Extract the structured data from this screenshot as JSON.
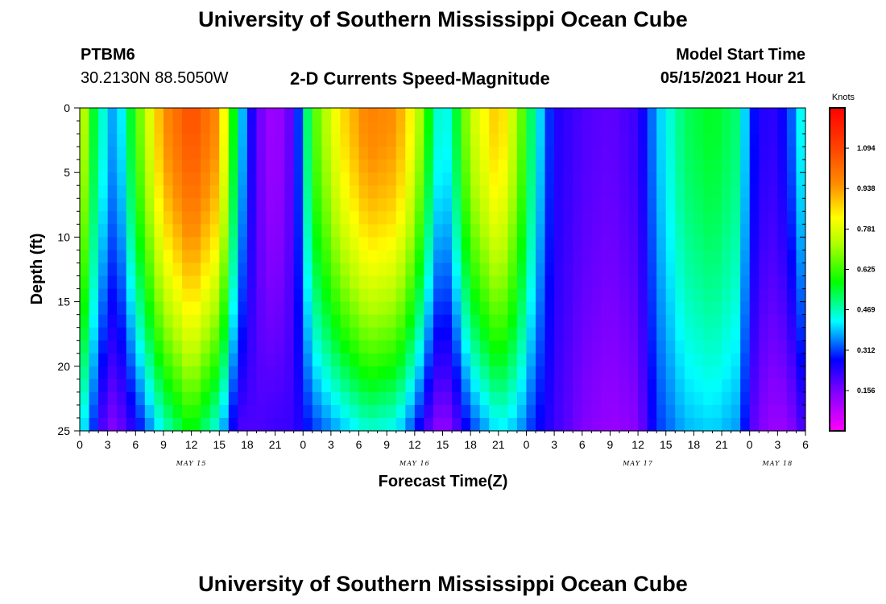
{
  "header": {
    "title": "University of Southern Mississippi Ocean Cube",
    "station": "PTBM6",
    "coords": "30.2130N  88.5050W",
    "subtitle": "2-D Currents Speed-Magnitude",
    "model_label": "Model Start Time",
    "model_time": "05/15/2021 Hour 21"
  },
  "footer": {
    "title": "University of Southern Mississippi Ocean Cube"
  },
  "chart_data": {
    "type": "heatmap",
    "title": "2-D Currents Speed-Magnitude",
    "xlabel": "Forecast Time(Z)",
    "ylabel": "Depth (ft)",
    "x_ticks": [
      "0",
      "3",
      "6",
      "9",
      "12",
      "15",
      "18",
      "21",
      "0",
      "3",
      "6",
      "9",
      "12",
      "15",
      "18",
      "21",
      "0",
      "3",
      "6",
      "9",
      "12",
      "15",
      "18",
      "21",
      "0",
      "3",
      "6"
    ],
    "x_day_labels": [
      {
        "label": "MAY 15",
        "hour": 12
      },
      {
        "label": "MAY 16",
        "hour": 36
      },
      {
        "label": "MAY 17",
        "hour": 60
      },
      {
        "label": "MAY 18",
        "hour": 75
      }
    ],
    "x_range_hours": [
      0,
      78
    ],
    "y_ticks": [
      0,
      5,
      10,
      15,
      20,
      25
    ],
    "ylim": [
      0,
      25
    ],
    "y_inverted": true,
    "colorbar": {
      "unit": "Knots",
      "range": [
        0,
        1.25
      ],
      "ticks": [
        "1.094",
        "0.938",
        "0.781",
        "0.625",
        "0.469",
        "0.312",
        "0.156"
      ],
      "tick_values": [
        1.094,
        0.938,
        0.781,
        0.625,
        0.469,
        0.312,
        0.156
      ],
      "colormap": "rainbow magenta-blue-cyan-green-yellow-orange-red"
    },
    "speed_profiles": [
      {
        "hour": 0,
        "top": 0.85,
        "bottom": 0.45
      },
      {
        "hour": 1,
        "top": 0.6,
        "bottom": 0.35
      },
      {
        "hour": 3,
        "top": 0.4,
        "bottom": 0.14
      },
      {
        "hour": 4,
        "top": 0.35,
        "bottom": 0.15
      },
      {
        "hour": 6,
        "top": 0.62,
        "bottom": 0.25
      },
      {
        "hour": 9,
        "top": 0.95,
        "bottom": 0.45
      },
      {
        "hour": 12,
        "top": 1.08,
        "bottom": 0.58
      },
      {
        "hour": 15,
        "top": 0.95,
        "bottom": 0.42
      },
      {
        "hour": 17,
        "top": 0.45,
        "bottom": 0.2
      },
      {
        "hour": 19,
        "top": 0.18,
        "bottom": 0.2
      },
      {
        "hour": 21,
        "top": 0.1,
        "bottom": 0.22
      },
      {
        "hour": 23,
        "top": 0.2,
        "bottom": 0.22
      },
      {
        "hour": 25,
        "top": 0.62,
        "bottom": 0.3
      },
      {
        "hour": 28,
        "top": 0.85,
        "bottom": 0.38
      },
      {
        "hour": 31,
        "top": 0.98,
        "bottom": 0.45
      },
      {
        "hour": 34,
        "top": 0.95,
        "bottom": 0.42
      },
      {
        "hour": 36,
        "top": 0.8,
        "bottom": 0.3
      },
      {
        "hour": 38,
        "top": 0.5,
        "bottom": 0.15
      },
      {
        "hour": 39,
        "top": 0.4,
        "bottom": 0.12
      },
      {
        "hour": 40,
        "top": 0.48,
        "bottom": 0.15
      },
      {
        "hour": 42,
        "top": 0.75,
        "bottom": 0.3
      },
      {
        "hour": 45,
        "top": 0.9,
        "bottom": 0.42
      },
      {
        "hour": 47,
        "top": 0.72,
        "bottom": 0.38
      },
      {
        "hour": 49,
        "top": 0.45,
        "bottom": 0.28
      },
      {
        "hour": 51,
        "top": 0.25,
        "bottom": 0.22
      },
      {
        "hour": 54,
        "top": 0.2,
        "bottom": 0.15
      },
      {
        "hour": 57,
        "top": 0.18,
        "bottom": 0.12
      },
      {
        "hour": 60,
        "top": 0.22,
        "bottom": 0.14
      },
      {
        "hour": 62,
        "top": 0.38,
        "bottom": 0.3
      },
      {
        "hour": 65,
        "top": 0.52,
        "bottom": 0.38
      },
      {
        "hour": 68,
        "top": 0.56,
        "bottom": 0.4
      },
      {
        "hour": 71,
        "top": 0.5,
        "bottom": 0.36
      },
      {
        "hour": 72,
        "top": 0.3,
        "bottom": 0.2
      },
      {
        "hour": 74,
        "top": 0.22,
        "bottom": 0.12
      },
      {
        "hour": 76,
        "top": 0.28,
        "bottom": 0.12
      },
      {
        "hour": 78,
        "top": 0.48,
        "bottom": 0.22
      }
    ]
  }
}
